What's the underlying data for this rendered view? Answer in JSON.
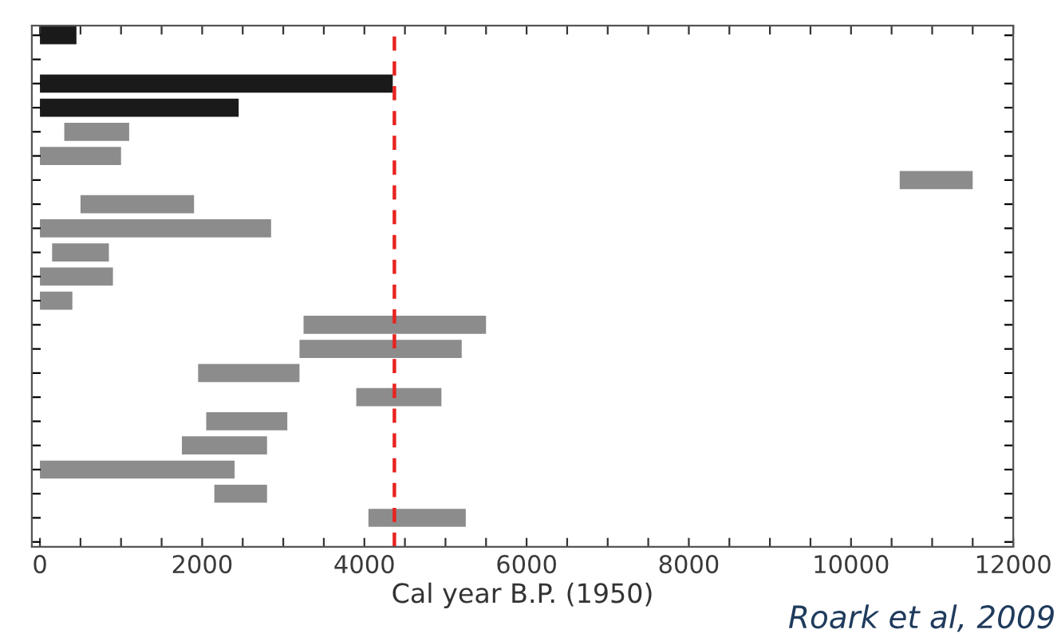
{
  "chart_data": {
    "type": "bar",
    "orientation": "horizontal",
    "xlabel": "Cal year B.P. (1950)",
    "annotations": [
      "Roark et al, 2009"
    ],
    "categories": [
      null,
      null,
      null,
      null,
      null,
      null,
      null,
      null,
      null,
      null,
      null,
      null,
      null,
      null,
      null,
      null,
      null,
      null,
      null,
      null,
      null,
      null
    ],
    "base": [
      0,
      null,
      0,
      0,
      300,
      0,
      10600,
      500,
      0,
      150,
      0,
      0,
      3250,
      3200,
      1950,
      3900,
      2050,
      1750,
      0,
      2150,
      4050,
      null
    ],
    "values": [
      450,
      null,
      4350,
      2450,
      800,
      1000,
      900,
      1400,
      2850,
      700,
      900,
      400,
      2250,
      2000,
      1250,
      1050,
      1000,
      1050,
      2400,
      650,
      1200,
      null
    ],
    "colors": [
      "#1a1a1a",
      "#8c8c8c",
      "#1a1a1a",
      "#1a1a1a",
      "#8c8c8c",
      "#8c8c8c",
      "#8c8c8c",
      "#8c8c8c",
      "#8c8c8c",
      "#8c8c8c",
      "#8c8c8c",
      "#8c8c8c",
      "#8c8c8c",
      "#8c8c8c",
      "#8c8c8c",
      "#8c8c8c",
      "#8c8c8c",
      "#8c8c8c",
      "#8c8c8c",
      "#8c8c8c",
      "#8c8c8c",
      "#8c8c8c"
    ],
    "xlim": [
      -100,
      12000
    ],
    "xticks": [
      0,
      {
        "value": 500,
        "label": null
      },
      {
        "value": 1000,
        "label": null
      },
      {
        "value": 1500,
        "label": null
      },
      2000,
      {
        "value": 2500,
        "label": null
      },
      {
        "value": 3000,
        "label": null
      },
      {
        "value": 3500,
        "label": null
      },
      4000,
      {
        "value": 4500,
        "label": null
      },
      {
        "value": 5000,
        "label": null
      },
      {
        "value": 5500,
        "label": null
      },
      6000,
      {
        "value": 6500,
        "label": null
      },
      {
        "value": 7000,
        "label": null
      },
      {
        "value": 7500,
        "label": null
      },
      8000,
      {
        "value": 8500,
        "label": null
      },
      {
        "value": 9000,
        "label": null
      },
      {
        "value": 9500,
        "label": null
      },
      10000,
      {
        "value": 10500,
        "label": null
      },
      {
        "value": 11000,
        "label": null
      },
      {
        "value": 11500,
        "label": null
      },
      12000
    ],
    "ref_lines": [
      {
        "axis": "x",
        "value": 4370,
        "color": "#e8231f",
        "line_style": "dashed"
      }
    ],
    "tick_labels": "x",
    "grid": false,
    "legend": false
  }
}
